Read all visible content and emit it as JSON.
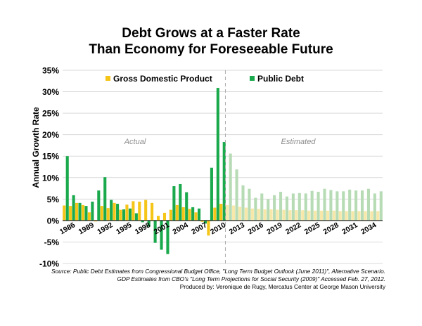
{
  "title_line1": "Debt Grows at a Faster Rate",
  "title_line2": "Than Economy for Foreseeable Future",
  "annotations": {
    "actual": "Actual",
    "estimated": "Estimated"
  },
  "footer": {
    "line1": "Source: Public Debt Estimates from Congressional Budget Office, \"Long Term Budget Outlook (June 2011)\", Alternative Scenario.",
    "line2": "GDP Estimates from CBO's \"Long Term Projections for Social Security (2009)\" Accessed Feb. 27, 2012.",
    "line3": "Produced by: Veronique de Rugy, Mercatus Center at George Mason University"
  },
  "colors": {
    "gdp": "#f5c518",
    "debt": "#1aa94c",
    "gdp_est": "#f7e7a8",
    "debt_est": "#b7dcb5",
    "grid": "#d9d9d9",
    "divider": "#aaaaaa"
  },
  "chart_data": {
    "type": "bar",
    "ylabel": "Annual Growth Rate",
    "ylim": [
      -10,
      35
    ],
    "yticks": [
      "-10%",
      "-5%",
      "0%",
      "5%",
      "10%",
      "15%",
      "20%",
      "25%",
      "30%",
      "35%"
    ],
    "x_tick_labels": [
      "1986",
      "1989",
      "1992",
      "1995",
      "1998",
      "2001",
      "2004",
      "2007",
      "2010",
      "2013",
      "2016",
      "2019",
      "2022",
      "2025",
      "2028",
      "2031",
      "2034"
    ],
    "grid": true,
    "legend_position": "top",
    "years": [
      1986,
      1987,
      1988,
      1989,
      1990,
      1991,
      1992,
      1993,
      1994,
      1995,
      1996,
      1997,
      1998,
      1999,
      2000,
      2001,
      2002,
      2003,
      2004,
      2005,
      2006,
      2007,
      2008,
      2009,
      2010,
      2011,
      2012,
      2013,
      2014,
      2015,
      2016,
      2017,
      2018,
      2019,
      2020,
      2021,
      2022,
      2023,
      2024,
      2025,
      2026,
      2027,
      2028,
      2029,
      2030,
      2031,
      2032,
      2033,
      2034,
      2035,
      2036
    ],
    "actual_through": 2011,
    "series": [
      {
        "name": "Gross Domestic Product",
        "values": [
          3.5,
          3.4,
          4.1,
          3.6,
          1.9,
          -0.2,
          3.4,
          2.9,
          4.1,
          2.5,
          3.7,
          4.5,
          4.4,
          4.8,
          4.1,
          1.1,
          1.8,
          2.5,
          3.6,
          3.1,
          2.7,
          1.9,
          -0.3,
          -3.5,
          3.0,
          3.9,
          3.6,
          3.5,
          3.2,
          3.0,
          2.8,
          2.7,
          2.6,
          2.6,
          2.5,
          2.5,
          2.4,
          2.4,
          2.4,
          2.3,
          2.3,
          2.3,
          2.3,
          2.3,
          2.2,
          2.2,
          2.2,
          2.2,
          2.2,
          2.2,
          2.2
        ]
      },
      {
        "name": "Public Debt",
        "values": [
          15.0,
          5.9,
          4.1,
          3.4,
          4.4,
          7.0,
          10.1,
          4.8,
          3.9,
          2.6,
          2.8,
          1.7,
          -0.4,
          -1.4,
          -5.2,
          -6.8,
          -7.8,
          8.0,
          8.5,
          6.6,
          3.1,
          2.8,
          -0.7,
          12.3,
          30.9,
          18.3,
          15.6,
          11.9,
          8.2,
          7.4,
          5.3,
          6.3,
          5.0,
          5.9,
          6.7,
          5.6,
          6.3,
          6.4,
          6.3,
          6.9,
          6.7,
          7.4,
          7.1,
          6.8,
          6.8,
          7.2,
          7.0,
          7.0,
          7.4,
          6.3,
          6.8
        ]
      }
    ]
  }
}
